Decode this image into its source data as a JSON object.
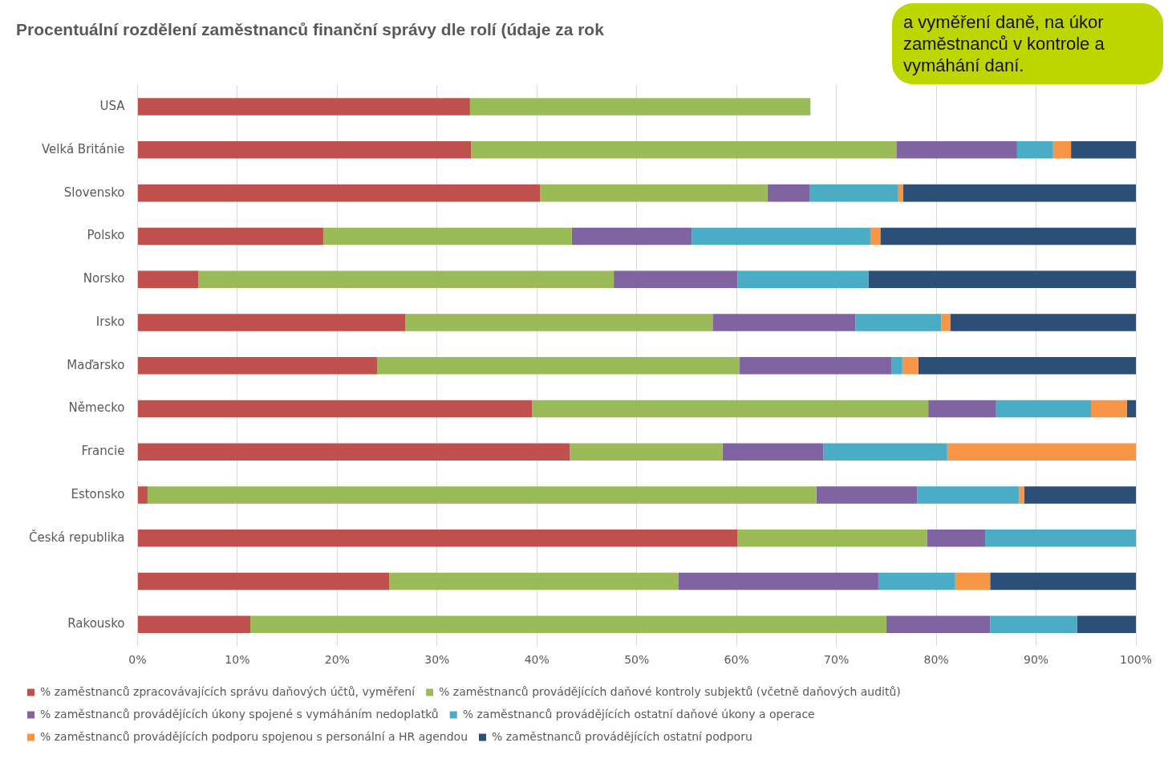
{
  "chart_data": {
    "type": "bar",
    "orientation": "horizontal",
    "stacked": true,
    "title": "Procentuální rozdělení zaměstnanců finanční správy dle rolí (údaje za rok",
    "categories": [
      "USA",
      "Velká Británie",
      "Slovensko",
      "Polsko",
      "Norsko",
      "Irsko",
      "Maďarsko",
      "Německo",
      "Francie",
      "Estonsko",
      "Česká republika",
      null,
      "Rakousko"
    ],
    "series": [
      {
        "name": "% zaměstnanců zpracovávajících správu daňových účtů, vyměření",
        "color": "#c0504d",
        "values": [
          33.3,
          33.4,
          40.3,
          18.6,
          6.1,
          26.8,
          24.0,
          39.5,
          43.3,
          1.0,
          60.1,
          25.2,
          11.3
        ]
      },
      {
        "name": "% zaměstnanců provádějících daňové kontroly subjektů (včetně daňových auditů)",
        "color": "#9bbb59",
        "values": [
          34.1,
          42.6,
          22.8,
          24.9,
          41.6,
          30.8,
          36.3,
          39.7,
          15.3,
          67.0,
          19.0,
          29.0,
          63.7
        ]
      },
      {
        "name": "% zaměstnanců provádějících úkony spojené s vymáháním nedoplatků",
        "color": "#8064a2",
        "values": [
          null,
          12.1,
          4.2,
          12.0,
          12.4,
          14.3,
          15.2,
          6.8,
          10.1,
          10.1,
          5.8,
          20.0,
          10.4
        ]
      },
      {
        "name": "% zaměstnanců provádějících ostatní daňové úkony a operace",
        "color": "#4bacc6",
        "values": [
          null,
          3.6,
          8.9,
          17.9,
          13.1,
          8.6,
          1.1,
          9.5,
          12.4,
          10.2,
          15.1,
          7.7,
          8.7
        ]
      },
      {
        "name": "% zaměstnanců provádějících podporu spojenou s personální a HR agendou",
        "color": "#f79646",
        "values": [
          null,
          1.8,
          0.5,
          1.0,
          0,
          0.9,
          1.6,
          3.6,
          18.9,
          0.5,
          0,
          3.5,
          0
        ]
      },
      {
        "name": "% zaměstnanců provádějících ostatní podporu",
        "color": "#2c4f77",
        "values": [
          null,
          6.5,
          23.3,
          25.6,
          26.8,
          18.6,
          21.8,
          0.9,
          0,
          11.2,
          0,
          14.6,
          5.9
        ]
      }
    ],
    "xlim": [
      0,
      100
    ],
    "xticks": [
      {
        "value": 0,
        "label": "0%"
      },
      {
        "value": 10,
        "label": "10%"
      },
      {
        "value": 20,
        "label": "20%"
      },
      {
        "value": 30,
        "label": "30%"
      },
      {
        "value": 40,
        "label": "40%"
      },
      {
        "value": 50,
        "label": "50%"
      },
      {
        "value": 60,
        "label": "60%"
      },
      {
        "value": 70,
        "label": "70%"
      },
      {
        "value": 80,
        "label": "80%"
      },
      {
        "value": 90,
        "label": "90%"
      },
      {
        "value": 100,
        "label": "100%"
      }
    ],
    "grid": "x",
    "legend": "bottom",
    "annotations": [
      "a vyměření daně, na úkor zaměstnanců v kontrole a vymáhání daní."
    ]
  }
}
